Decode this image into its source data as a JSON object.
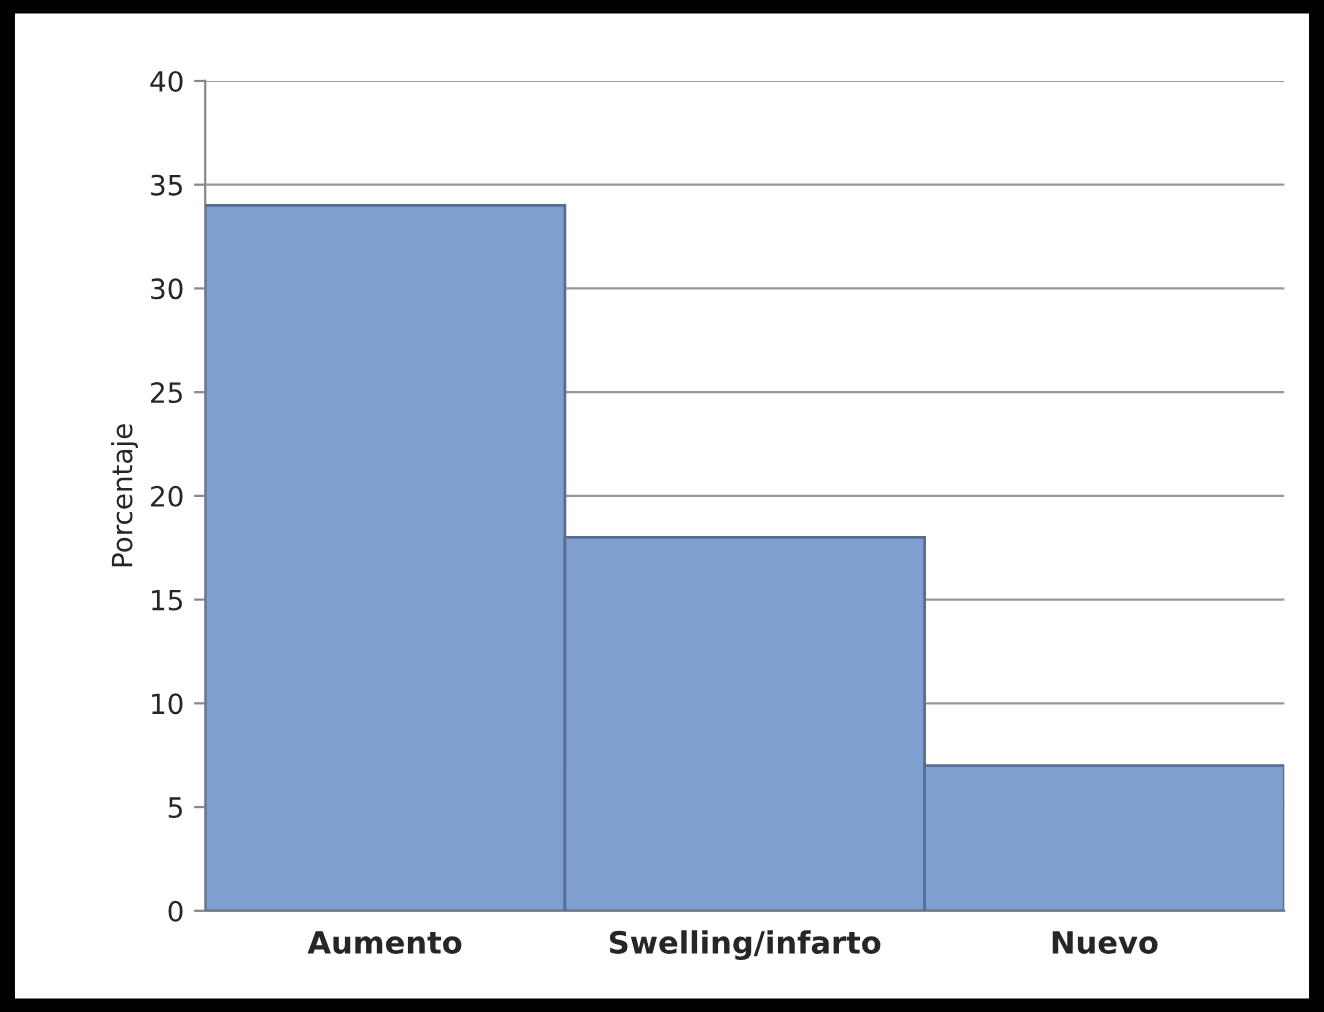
{
  "chart_data": {
    "type": "bar",
    "ylabel": "Porcentaje",
    "categories": [
      "Aumento",
      "Swelling/infarto",
      "Nuevo"
    ],
    "values": [
      34,
      18,
      7
    ],
    "color": "#7f9fd0",
    "ylim": [
      0,
      40
    ],
    "yticks": [
      0,
      5,
      10,
      15,
      20,
      25,
      30,
      35,
      40
    ],
    "grid": "y"
  }
}
